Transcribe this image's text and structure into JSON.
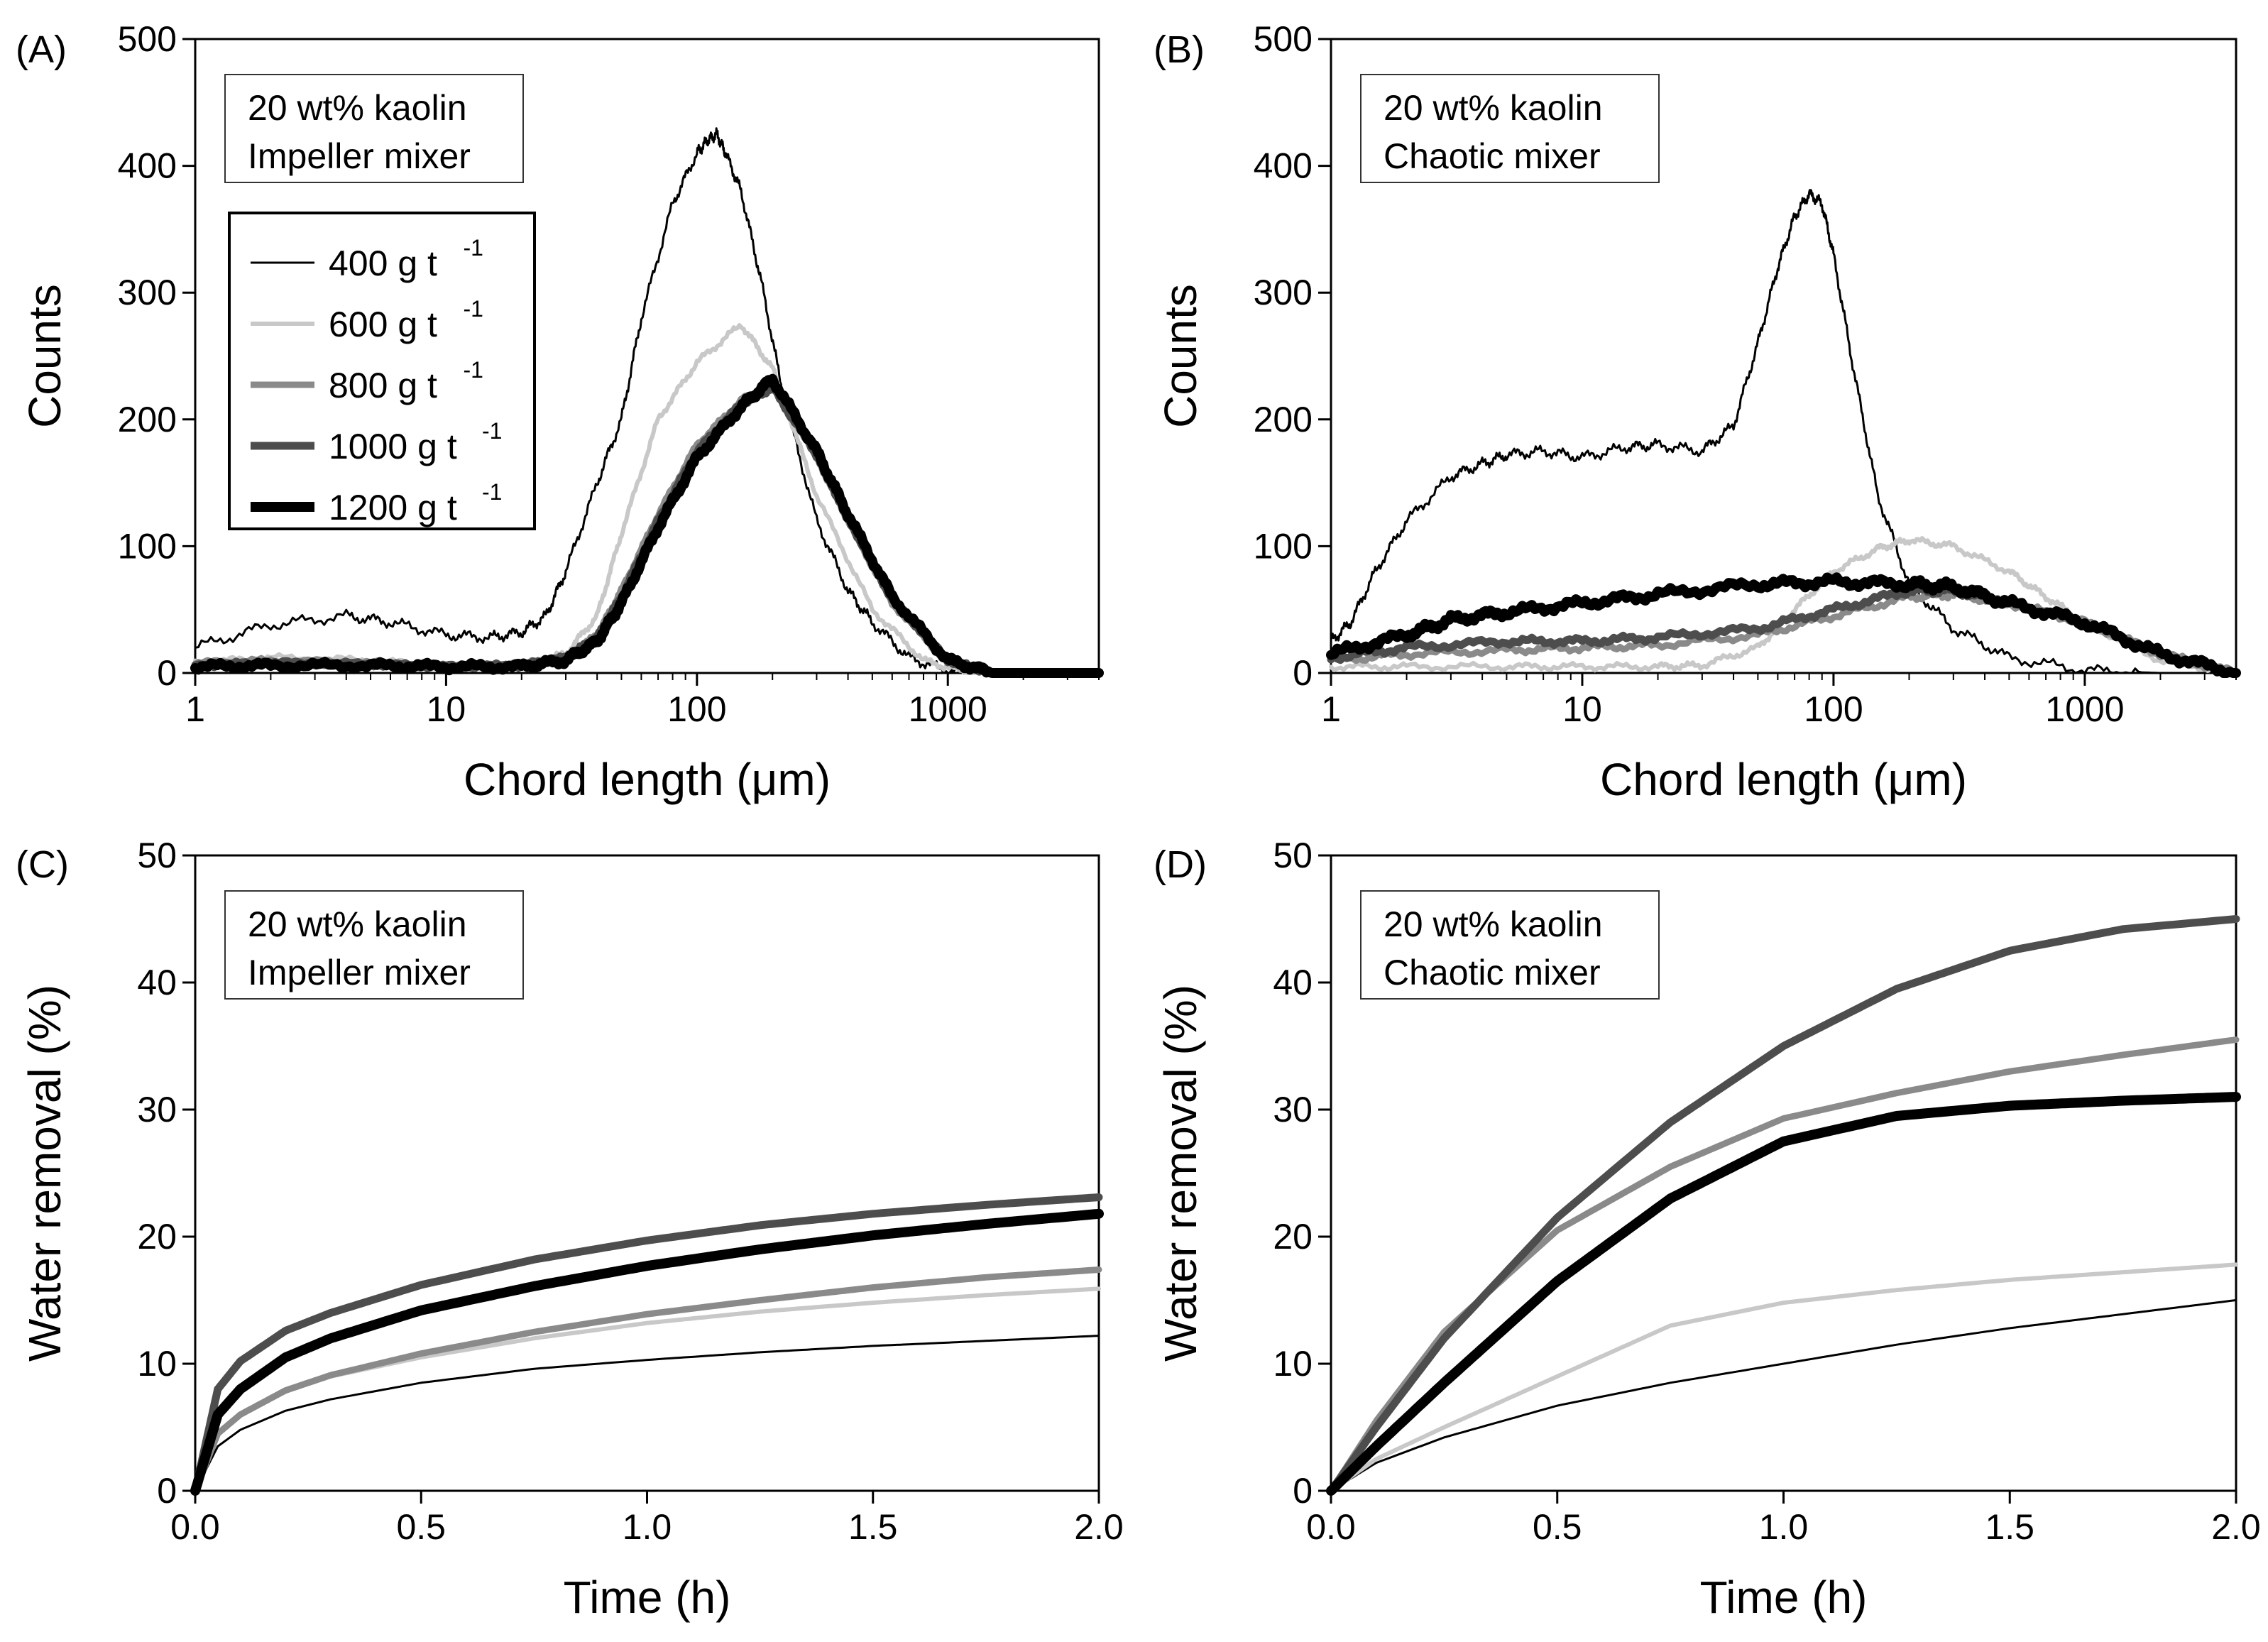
{
  "legend": {
    "series": [
      {
        "key": "s400",
        "label": "400 g t",
        "sup": "-1",
        "color": "#000000",
        "width": 3
      },
      {
        "key": "s600",
        "label": "600 g t",
        "sup": "-1",
        "color": "#c8c8c8",
        "width": 6
      },
      {
        "key": "s800",
        "label": "800 g t",
        "sup": "-1",
        "color": "#8a8a8a",
        "width": 9
      },
      {
        "key": "s1000",
        "label": "1000 g t",
        "sup": "-1",
        "color": "#4d4d4d",
        "width": 11
      },
      {
        "key": "s1200",
        "label": "1200 g t",
        "sup": "-1",
        "color": "#000000",
        "width": 14
      }
    ]
  },
  "chart_data": [
    {
      "id": "A",
      "panel_label": "(A)",
      "type": "line",
      "xscale": "log",
      "xlim": [
        1,
        4000
      ],
      "ylim": [
        0,
        500
      ],
      "xticks": [
        1,
        10,
        100,
        1000
      ],
      "xtick_labels": [
        "1",
        "10",
        "100",
        "1000"
      ],
      "yticks": [
        0,
        100,
        200,
        300,
        400,
        500
      ],
      "ytick_labels": [
        "0",
        "100",
        "200",
        "300",
        "400",
        "500"
      ],
      "xlabel": "Chord length (μm)",
      "ylabel": "Counts",
      "note": [
        "20 wt% kaolin",
        "Impeller mixer"
      ],
      "show_legend": true,
      "series": [
        {
          "key": "s400",
          "noise": 5,
          "x": [
            1,
            2,
            4,
            6,
            10,
            15,
            20,
            25,
            30,
            40,
            50,
            60,
            80,
            100,
            110,
            120,
            130,
            150,
            180,
            220,
            300,
            400,
            500,
            700,
            1000,
            1500,
            4000
          ],
          "y": [
            20,
            38,
            45,
            40,
            30,
            28,
            32,
            45,
            80,
            150,
            200,
            280,
            370,
            410,
            420,
            425,
            410,
            380,
            310,
            220,
            120,
            65,
            40,
            12,
            2,
            0,
            0
          ]
        },
        {
          "key": "s600",
          "noise": 3,
          "x": [
            1,
            2,
            5,
            10,
            20,
            30,
            40,
            50,
            70,
            100,
            150,
            200,
            300,
            500,
            800,
            1200,
            4000
          ],
          "y": [
            8,
            12,
            10,
            5,
            6,
            15,
            45,
            110,
            200,
            245,
            275,
            240,
            140,
            50,
            10,
            0,
            0
          ]
        },
        {
          "key": "s800",
          "noise": 2,
          "x": [
            1,
            2,
            5,
            10,
            20,
            30,
            40,
            50,
            70,
            100,
            150,
            200,
            300,
            400,
            600,
            1000,
            1500,
            4000
          ],
          "y": [
            8,
            10,
            8,
            5,
            6,
            12,
            30,
            65,
            125,
            180,
            215,
            230,
            170,
            120,
            55,
            8,
            0,
            0
          ]
        },
        {
          "key": "s1000",
          "noise": 2,
          "x": [
            1,
            2,
            5,
            10,
            20,
            30,
            40,
            50,
            70,
            100,
            150,
            200,
            300,
            400,
            600,
            1000,
            1500,
            4000
          ],
          "y": [
            6,
            8,
            7,
            5,
            6,
            12,
            28,
            60,
            120,
            175,
            212,
            225,
            172,
            122,
            58,
            10,
            0,
            0
          ]
        },
        {
          "key": "s1200",
          "noise": 3,
          "x": [
            1,
            2,
            5,
            10,
            20,
            30,
            40,
            50,
            70,
            100,
            150,
            200,
            300,
            400,
            600,
            1000,
            1500,
            4000
          ],
          "y": [
            5,
            6,
            6,
            5,
            5,
            10,
            25,
            55,
            115,
            170,
            210,
            232,
            175,
            125,
            60,
            10,
            0,
            0
          ]
        }
      ]
    },
    {
      "id": "B",
      "panel_label": "(B)",
      "type": "line",
      "xscale": "log",
      "xlim": [
        1,
        4000
      ],
      "ylim": [
        0,
        500
      ],
      "xticks": [
        1,
        10,
        100,
        1000
      ],
      "xtick_labels": [
        "1",
        "10",
        "100",
        "1000"
      ],
      "yticks": [
        0,
        100,
        200,
        300,
        400,
        500
      ],
      "ytick_labels": [
        "0",
        "100",
        "200",
        "300",
        "400",
        "500"
      ],
      "xlabel": "Chord length (μm)",
      "ylabel": "Counts",
      "note": [
        "20 wt% kaolin",
        "Chaotic mixer"
      ],
      "show_legend": false,
      "series": [
        {
          "key": "s400",
          "noise": 5,
          "x": [
            1,
            1.2,
            1.5,
            2,
            3,
            4,
            5,
            7,
            10,
            15,
            20,
            30,
            40,
            50,
            60,
            70,
            80,
            90,
            100,
            120,
            150,
            200,
            300,
            500,
            1000,
            2000,
            4000
          ],
          "y": [
            25,
            40,
            80,
            120,
            155,
            165,
            172,
            175,
            170,
            178,
            180,
            175,
            195,
            260,
            320,
            360,
            378,
            370,
            330,
            240,
            140,
            70,
            35,
            12,
            2,
            0,
            0
          ]
        },
        {
          "key": "s600",
          "noise": 3,
          "x": [
            1,
            2,
            5,
            10,
            20,
            30,
            50,
            70,
            100,
            150,
            200,
            300,
            500,
            700,
            1000,
            2000,
            4000
          ],
          "y": [
            5,
            5,
            5,
            5,
            5,
            6,
            20,
            50,
            80,
            98,
            105,
            100,
            80,
            60,
            40,
            10,
            0
          ]
        },
        {
          "key": "s800",
          "noise": 3,
          "x": [
            1,
            2,
            5,
            10,
            20,
            50,
            100,
            200,
            300,
            500,
            1000,
            2000,
            4000
          ],
          "y": [
            10,
            15,
            18,
            20,
            22,
            30,
            45,
            60,
            62,
            55,
            40,
            15,
            0
          ]
        },
        {
          "key": "s1000",
          "noise": 3,
          "x": [
            1,
            2,
            5,
            10,
            20,
            50,
            100,
            200,
            300,
            500,
            1000,
            2000,
            4000
          ],
          "y": [
            12,
            20,
            25,
            25,
            28,
            35,
            50,
            65,
            65,
            55,
            40,
            15,
            0
          ]
        },
        {
          "key": "s1200",
          "noise": 4,
          "x": [
            1,
            2,
            3,
            5,
            10,
            20,
            50,
            100,
            200,
            300,
            500,
            1000,
            2000,
            4000
          ],
          "y": [
            15,
            30,
            42,
            48,
            55,
            62,
            70,
            72,
            70,
            68,
            55,
            40,
            15,
            0
          ]
        }
      ]
    },
    {
      "id": "C",
      "panel_label": "(C)",
      "type": "line",
      "xscale": "linear",
      "xlim": [
        0,
        2
      ],
      "ylim": [
        0,
        50
      ],
      "xticks": [
        0,
        0.5,
        1,
        1.5,
        2
      ],
      "xtick_labels": [
        "0.0",
        "0.5",
        "1.0",
        "1.5",
        "2.0"
      ],
      "yticks": [
        0,
        10,
        20,
        30,
        40,
        50
      ],
      "ytick_labels": [
        "0",
        "10",
        "20",
        "30",
        "40",
        "50"
      ],
      "xlabel": "Time (h)",
      "ylabel": "Water removal (%)",
      "note": [
        "20 wt% kaolin",
        "Impeller mixer"
      ],
      "show_legend": false,
      "series": [
        {
          "key": "s400",
          "x": [
            0,
            0.05,
            0.1,
            0.2,
            0.3,
            0.5,
            0.75,
            1,
            1.25,
            1.5,
            1.75,
            2
          ],
          "y": [
            0,
            3.5,
            4.8,
            6.3,
            7.2,
            8.5,
            9.6,
            10.3,
            10.9,
            11.4,
            11.8,
            12.2
          ]
        },
        {
          "key": "s600",
          "x": [
            0,
            0.05,
            0.1,
            0.2,
            0.3,
            0.5,
            0.75,
            1,
            1.25,
            1.5,
            1.75,
            2
          ],
          "y": [
            0,
            4.5,
            6,
            7.8,
            9,
            10.5,
            12,
            13.2,
            14.1,
            14.8,
            15.4,
            15.9
          ]
        },
        {
          "key": "s800",
          "x": [
            0,
            0.05,
            0.1,
            0.2,
            0.3,
            0.5,
            0.75,
            1,
            1.25,
            1.5,
            1.75,
            2
          ],
          "y": [
            0,
            4.5,
            6,
            7.9,
            9.1,
            10.8,
            12.5,
            13.9,
            15,
            16,
            16.8,
            17.4
          ]
        },
        {
          "key": "s1000",
          "x": [
            0,
            0.05,
            0.1,
            0.2,
            0.3,
            0.5,
            0.75,
            1,
            1.25,
            1.5,
            1.75,
            2
          ],
          "y": [
            0,
            8,
            10.2,
            12.6,
            14,
            16.2,
            18.2,
            19.7,
            20.9,
            21.8,
            22.5,
            23.1
          ]
        },
        {
          "key": "s1200",
          "x": [
            0,
            0.05,
            0.1,
            0.2,
            0.3,
            0.5,
            0.75,
            1,
            1.25,
            1.5,
            1.75,
            2
          ],
          "y": [
            0,
            6,
            8,
            10.5,
            12,
            14.2,
            16.1,
            17.7,
            19,
            20.1,
            21,
            21.8
          ]
        }
      ]
    },
    {
      "id": "D",
      "panel_label": "(D)",
      "type": "line",
      "xscale": "linear",
      "xlim": [
        0,
        2
      ],
      "ylim": [
        0,
        50
      ],
      "xticks": [
        0,
        0.5,
        1,
        1.5,
        2
      ],
      "xtick_labels": [
        "0.0",
        "0.5",
        "1.0",
        "1.5",
        "2.0"
      ],
      "yticks": [
        0,
        10,
        20,
        30,
        40,
        50
      ],
      "ytick_labels": [
        "0",
        "10",
        "20",
        "30",
        "40",
        "50"
      ],
      "xlabel": "Time (h)",
      "ylabel": "Water removal (%)",
      "note": [
        "20 wt% kaolin",
        "Chaotic mixer"
      ],
      "show_legend": false,
      "series": [
        {
          "key": "s400",
          "x": [
            0,
            0.1,
            0.25,
            0.5,
            0.75,
            1,
            1.25,
            1.5,
            1.75,
            2
          ],
          "y": [
            0,
            2.2,
            4.2,
            6.7,
            8.5,
            10,
            11.5,
            12.8,
            13.9,
            15
          ]
        },
        {
          "key": "s600",
          "x": [
            0,
            0.1,
            0.25,
            0.5,
            0.75,
            1,
            1.25,
            1.5,
            1.75,
            2
          ],
          "y": [
            0,
            2.5,
            5,
            9,
            13,
            14.8,
            15.8,
            16.6,
            17.2,
            17.8
          ]
        },
        {
          "key": "s800",
          "x": [
            0,
            0.1,
            0.25,
            0.5,
            0.75,
            1,
            1.25,
            1.5,
            1.75,
            2
          ],
          "y": [
            0,
            5.5,
            12.5,
            20.5,
            25.5,
            29.3,
            31.3,
            33,
            34.3,
            35.5
          ]
        },
        {
          "key": "s1000",
          "x": [
            0,
            0.1,
            0.25,
            0.5,
            0.75,
            1,
            1.25,
            1.5,
            1.75,
            2
          ],
          "y": [
            0,
            5,
            12,
            21.5,
            29,
            35,
            39.5,
            42.5,
            44.2,
            45
          ]
        },
        {
          "key": "s1200",
          "x": [
            0,
            0.1,
            0.25,
            0.5,
            0.75,
            1,
            1.25,
            1.5,
            1.75,
            2
          ],
          "y": [
            0,
            3.5,
            8.5,
            16.5,
            23,
            27.5,
            29.5,
            30.3,
            30.7,
            31
          ]
        }
      ]
    }
  ]
}
